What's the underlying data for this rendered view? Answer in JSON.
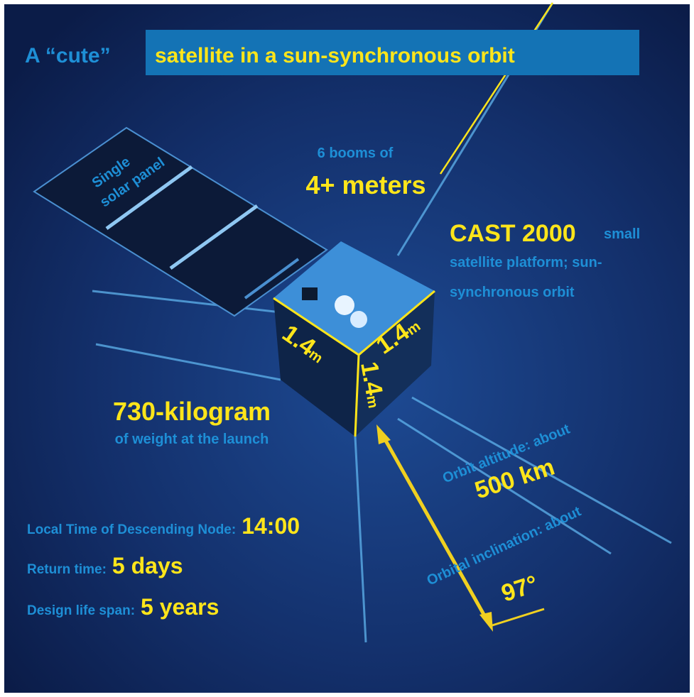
{
  "title": {
    "prefix": "A “cute”",
    "highlight": "satellite in a sun-synchronous orbit"
  },
  "solar_panel": [
    "Single",
    "solar panel"
  ],
  "booms": {
    "small": "6 booms of",
    "big": "4+ meters"
  },
  "platform": {
    "big": "CAST 2000",
    "small": "small",
    "lines": [
      "satellite platform; sun-",
      "synchronous orbit"
    ]
  },
  "dimensions": [
    {
      "value": "1.4",
      "unit": "m"
    },
    {
      "value": "1.4",
      "unit": "m"
    },
    {
      "value": "1.4",
      "unit": "m"
    }
  ],
  "weight": {
    "big": "730-kilogram",
    "small": "of weight at the launch"
  },
  "altitude": {
    "small": "Orbit altitude: about",
    "big": "500 km"
  },
  "inclination": {
    "small": "Orbital inclination: about",
    "big": "97°"
  },
  "facts": [
    {
      "label": "Local Time of Descending Node:",
      "value": "14:00"
    },
    {
      "label": "Return time:",
      "value": "5 days"
    },
    {
      "label": "Design life span:",
      "value": "5 years"
    }
  ]
}
